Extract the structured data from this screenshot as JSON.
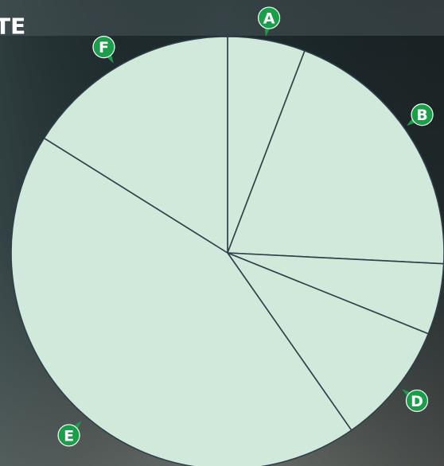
{
  "header": {
    "title": "TE"
  },
  "chart_data": {
    "type": "pie",
    "categories": [
      "A",
      "B",
      null,
      "D",
      "E",
      "F"
    ],
    "values": [
      5.8,
      20,
      5.3,
      9.2,
      43.6,
      16.1
    ],
    "color": "#d0e9da",
    "edge_color": "#2f3f4a",
    "label_color": "#1a9e4a"
  }
}
